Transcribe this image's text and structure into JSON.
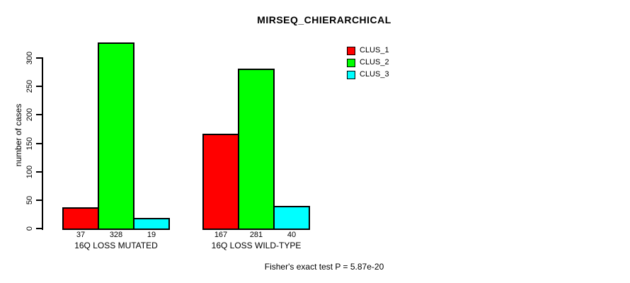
{
  "title": "MIRSEQ_CHIERARCHICAL",
  "ylabel": "number of cases",
  "footnote": "Fisher's exact test P = 5.87e-20",
  "chart_data": {
    "type": "bar",
    "title": "MIRSEQ_CHIERARCHICAL",
    "xlabel": "",
    "ylabel": "number of cases",
    "categories": [
      "16Q LOSS MUTATED",
      "16Q LOSS WILD-TYPE"
    ],
    "series": [
      {
        "name": "CLUS_1",
        "color": "#ff0000",
        "values": [
          37,
          167
        ]
      },
      {
        "name": "CLUS_2",
        "color": "#00ff00",
        "values": [
          328,
          281
        ]
      },
      {
        "name": "CLUS_3",
        "color": "#00ffff",
        "values": [
          19,
          40
        ]
      }
    ],
    "yticks": [
      0,
      50,
      100,
      150,
      200,
      250,
      300
    ],
    "ylim": [
      0,
      335
    ],
    "grid": false,
    "bar_value_labels_shown": true,
    "legend_position": "top-right",
    "annotation": "Fisher's exact test P = 5.87e-20"
  }
}
